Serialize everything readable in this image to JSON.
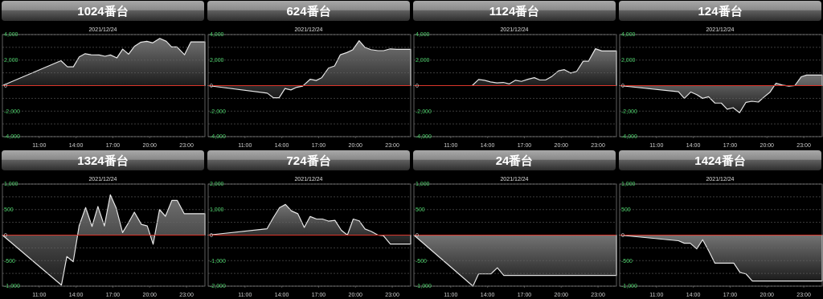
{
  "chart_data": [
    {
      "type": "area",
      "title": "1024番台",
      "subtitle": "2021/12/24",
      "color": "#e6e6e6",
      "xlim": [
        8,
        24.5
      ],
      "xticks": [
        {
          "value": 11,
          "label": "11:00"
        },
        {
          "value": 14,
          "label": "14:00"
        },
        {
          "value": 17,
          "label": "17:00"
        },
        {
          "value": 20,
          "label": "20:00"
        },
        {
          "value": 23,
          "label": "23:00"
        }
      ],
      "ylim": [
        -4000,
        4000
      ],
      "yticks": [
        {
          "value": 4000,
          "label": "4,000"
        },
        {
          "value": 3000,
          "label": null
        },
        {
          "value": 2000,
          "label": "2,000"
        },
        {
          "value": 1000,
          "label": null
        },
        0,
        {
          "value": -1000,
          "label": null
        },
        {
          "value": -2000,
          "label": "-2,000"
        },
        {
          "value": -3000,
          "label": null
        },
        {
          "value": -4000,
          "label": "-4,000"
        }
      ],
      "grid": "y",
      "ref_lines": [
        {
          "axis": "y",
          "value": 0,
          "color": "#d9352a"
        }
      ],
      "x": [
        8,
        12.77,
        13.3,
        13.78,
        14.26,
        14.74,
        15.22,
        15.88,
        16.36,
        16.8,
        17.32,
        17.8,
        18.28,
        18.77,
        19.25,
        19.77,
        20.25,
        20.82,
        21.35,
        21.78,
        22.22,
        22.84,
        23.36,
        24.5
      ],
      "values": [
        0,
        1950,
        1470,
        1470,
        2250,
        2500,
        2420,
        2400,
        2300,
        2400,
        2170,
        2860,
        2460,
        3090,
        3390,
        3470,
        3350,
        3700,
        3470,
        3030,
        3030,
        2420,
        3430,
        3430
      ]
    },
    {
      "type": "area",
      "title": "624番台",
      "subtitle": "2021/12/24",
      "color": "#e6e6e6",
      "xlim": [
        8,
        24.5
      ],
      "xticks": [
        {
          "value": 11,
          "label": "11:00"
        },
        {
          "value": 14,
          "label": "14:00"
        },
        {
          "value": 17,
          "label": "17:00"
        },
        {
          "value": 20,
          "label": "20:00"
        },
        {
          "value": 23,
          "label": "23:00"
        }
      ],
      "ylim": [
        -4000,
        4000
      ],
      "yticks": [
        {
          "value": 4000,
          "label": "4,000"
        },
        {
          "value": 3000,
          "label": null
        },
        {
          "value": 2000,
          "label": "2,000"
        },
        {
          "value": 1000,
          "label": null
        },
        0,
        {
          "value": -1000,
          "label": null
        },
        {
          "value": -2000,
          "label": "-2,000"
        },
        {
          "value": -3000,
          "label": null
        },
        {
          "value": -4000,
          "label": "-4,000"
        }
      ],
      "grid": "y",
      "ref_lines": [
        {
          "axis": "y",
          "value": 0,
          "color": "#d9352a"
        }
      ],
      "x": [
        8,
        12.82,
        13.3,
        13.78,
        14.26,
        14.74,
        15.22,
        15.7,
        16.32,
        16.8,
        17.24,
        17.8,
        18.3,
        18.77,
        19.3,
        19.77,
        20.3,
        20.78,
        21.26,
        21.83,
        22.3,
        22.83,
        23.36,
        24.5
      ],
      "values": [
        0,
        -590,
        -950,
        -950,
        -230,
        -340,
        -130,
        -40,
        500,
        400,
        610,
        1370,
        1540,
        2420,
        2590,
        2800,
        3520,
        2990,
        2820,
        2740,
        2740,
        2880,
        2840,
        2840
      ]
    },
    {
      "type": "area",
      "title": "1124番台",
      "subtitle": "2021/12/24",
      "color": "#e6e6e6",
      "xlim": [
        8,
        24.5
      ],
      "xticks": [
        {
          "value": 11,
          "label": "11:00"
        },
        {
          "value": 14,
          "label": "14:00"
        },
        {
          "value": 17,
          "label": "17:00"
        },
        {
          "value": 20,
          "label": "20:00"
        },
        {
          "value": 23,
          "label": "23:00"
        }
      ],
      "ylim": [
        -4000,
        4000
      ],
      "yticks": [
        {
          "value": 4000,
          "label": "4,000"
        },
        {
          "value": 3000,
          "label": null
        },
        {
          "value": 2000,
          "label": "2,000"
        },
        {
          "value": 1000,
          "label": null
        },
        0,
        {
          "value": -1000,
          "label": null
        },
        {
          "value": -2000,
          "label": "-2,000"
        },
        {
          "value": -3000,
          "label": null
        },
        {
          "value": -4000,
          "label": "-4,000"
        }
      ],
      "grid": "y",
      "ref_lines": [
        {
          "axis": "y",
          "value": 0,
          "color": "#d9352a"
        }
      ],
      "x": [
        8,
        12.75,
        13.27,
        13.75,
        14.23,
        14.76,
        15.28,
        15.76,
        16.28,
        16.76,
        17.29,
        17.81,
        18.25,
        18.73,
        19.25,
        19.78,
        20.26,
        20.78,
        21.26,
        21.79,
        22.22,
        22.79,
        23.31,
        24.5
      ],
      "values": [
        0,
        0,
        480,
        420,
        290,
        210,
        250,
        130,
        420,
        330,
        500,
        620,
        440,
        440,
        730,
        1160,
        1250,
        980,
        1120,
        1910,
        1910,
        2890,
        2720,
        2720
      ]
    },
    {
      "type": "area",
      "title": "124番台",
      "subtitle": "2021/12/24",
      "color": "#e6e6e6",
      "xlim": [
        8,
        24.5
      ],
      "xticks": [
        {
          "value": 11,
          "label": "11:00"
        },
        {
          "value": 14,
          "label": "14:00"
        },
        {
          "value": 17,
          "label": "17:00"
        },
        {
          "value": 20,
          "label": "20:00"
        },
        {
          "value": 23,
          "label": "23:00"
        }
      ],
      "ylim": [
        -4000,
        4000
      ],
      "yticks": [
        {
          "value": 4000,
          "label": "4,000"
        },
        {
          "value": 3000,
          "label": null
        },
        {
          "value": 2000,
          "label": "2,000"
        },
        {
          "value": 1000,
          "label": null
        },
        0,
        {
          "value": -1000,
          "label": null
        },
        {
          "value": -2000,
          "label": "-2,000"
        },
        {
          "value": -3000,
          "label": null
        },
        {
          "value": -4000,
          "label": "-4,000"
        }
      ],
      "grid": "y",
      "ref_lines": [
        {
          "axis": "y",
          "value": 0,
          "color": "#d9352a"
        }
      ],
      "x": [
        8,
        12.79,
        13.27,
        13.8,
        14.28,
        14.76,
        15.24,
        15.76,
        16.28,
        16.76,
        17.24,
        17.77,
        18.29,
        18.77,
        19.3,
        19.73,
        20.26,
        20.74,
        21.26,
        21.79,
        22.27,
        22.79,
        23.23,
        24.5
      ],
      "values": [
        0,
        -480,
        -1000,
        -500,
        -710,
        -1000,
        -870,
        -1370,
        -1370,
        -1850,
        -1730,
        -2120,
        -1310,
        -1230,
        -1290,
        -920,
        -500,
        190,
        40,
        -40,
        0,
        690,
        830,
        830
      ]
    },
    {
      "type": "area",
      "title": "1324番台",
      "subtitle": "2021/12/24",
      "color": "#e6e6e6",
      "xlim": [
        8,
        24.5
      ],
      "xticks": [
        {
          "value": 11,
          "label": "11:00"
        },
        {
          "value": 14,
          "label": "14:00"
        },
        {
          "value": 17,
          "label": "17:00"
        },
        {
          "value": 20,
          "label": "20:00"
        },
        {
          "value": 23,
          "label": "23:00"
        }
      ],
      "ylim": [
        -1000,
        1000
      ],
      "yticks": [
        {
          "value": 1000,
          "label": "1,000"
        },
        {
          "value": 750,
          "label": null
        },
        500,
        {
          "value": 250,
          "label": null
        },
        0,
        {
          "value": -250,
          "label": null
        },
        -500,
        {
          "value": -750,
          "label": null
        },
        {
          "value": -1000,
          "label": "-1,000"
        }
      ],
      "grid": "y",
      "ref_lines": [
        {
          "axis": "y",
          "value": 0,
          "color": "#d9352a"
        }
      ],
      "x": [
        8,
        12.81,
        13.25,
        13.77,
        14.25,
        14.78,
        15.3,
        15.78,
        16.31,
        16.79,
        17.27,
        17.79,
        18.27,
        18.75,
        19.32,
        19.8,
        20.28,
        20.8,
        21.28,
        21.81,
        22.24,
        22.81,
        23.34,
        24.5
      ],
      "values": [
        0,
        -980,
        -420,
        -520,
        180,
        540,
        170,
        560,
        180,
        790,
        530,
        50,
        240,
        450,
        210,
        180,
        -180,
        500,
        370,
        680,
        680,
        420,
        420,
        420
      ]
    },
    {
      "type": "area",
      "title": "724番台",
      "subtitle": "2021/12/24",
      "color": "#e6e6e6",
      "xlim": [
        8,
        24.5
      ],
      "xticks": [
        {
          "value": 11,
          "label": "11:00"
        },
        {
          "value": 14,
          "label": "14:00"
        },
        {
          "value": 17,
          "label": "17:00"
        },
        {
          "value": 20,
          "label": "20:00"
        },
        {
          "value": 23,
          "label": "23:00"
        }
      ],
      "ylim": [
        -2000,
        2000
      ],
      "yticks": [
        {
          "value": 2000,
          "label": "2,000"
        },
        {
          "value": 1500,
          "label": null
        },
        {
          "value": 1000,
          "label": "1,000"
        },
        {
          "value": 500,
          "label": null
        },
        0,
        {
          "value": -500,
          "label": null
        },
        {
          "value": -1000,
          "label": "-1,000"
        },
        {
          "value": -1500,
          "label": null
        },
        {
          "value": -2000,
          "label": "-2,000"
        }
      ],
      "grid": "y",
      "ref_lines": [
        {
          "axis": "y",
          "value": 0,
          "color": "#d9352a"
        }
      ],
      "x": [
        8,
        12.8,
        13.29,
        13.82,
        14.3,
        14.78,
        15.3,
        15.83,
        16.31,
        16.83,
        17.31,
        17.8,
        18.33,
        18.85,
        19.34,
        19.82,
        20.3,
        20.78,
        21.3,
        21.83,
        22.27,
        22.84,
        23.37,
        24.5
      ],
      "values": [
        0,
        250,
        670,
        1080,
        1200,
        950,
        840,
        300,
        730,
        630,
        630,
        550,
        580,
        190,
        0,
        630,
        560,
        240,
        140,
        0,
        -20,
        -350,
        -350,
        -350
      ]
    },
    {
      "type": "area",
      "title": "24番台",
      "subtitle": "2021/12/24",
      "color": "#e6e6e6",
      "xlim": [
        8,
        24.5
      ],
      "xticks": [
        {
          "value": 11,
          "label": "11:00"
        },
        {
          "value": 14,
          "label": "14:00"
        },
        {
          "value": 17,
          "label": "17:00"
        },
        {
          "value": 20,
          "label": "20:00"
        },
        {
          "value": 23,
          "label": "23:00"
        }
      ],
      "ylim": [
        -1000,
        1000
      ],
      "yticks": [
        {
          "value": 1000,
          "label": "1,000"
        },
        {
          "value": 750,
          "label": null
        },
        500,
        {
          "value": 250,
          "label": null
        },
        0,
        {
          "value": -250,
          "label": null
        },
        -500,
        {
          "value": -750,
          "label": null
        },
        {
          "value": -1000,
          "label": "-1,000"
        }
      ],
      "grid": "y",
      "ref_lines": [
        {
          "axis": "y",
          "value": 0,
          "color": "#d9352a"
        }
      ],
      "x": [
        8,
        12.81,
        13.27,
        14.28,
        14.8,
        15.32,
        24.5
      ],
      "values": [
        0,
        -1000,
        -760,
        -760,
        -640,
        -790,
        -790
      ]
    },
    {
      "type": "area",
      "title": "1424番台",
      "subtitle": "2021/12/24",
      "color": "#e6e6e6",
      "xlim": [
        8,
        24.5
      ],
      "xticks": [
        {
          "value": 11,
          "label": "11:00"
        },
        {
          "value": 14,
          "label": "14:00"
        },
        {
          "value": 17,
          "label": "17:00"
        },
        {
          "value": 20,
          "label": "20:00"
        },
        {
          "value": 23,
          "label": "23:00"
        }
      ],
      "ylim": [
        -1000,
        1000
      ],
      "yticks": [
        {
          "value": 1000,
          "label": "1,000"
        },
        {
          "value": 750,
          "label": null
        },
        500,
        {
          "value": 250,
          "label": null
        },
        0,
        {
          "value": -250,
          "label": null
        },
        -500,
        {
          "value": -750,
          "label": null
        },
        {
          "value": -1000,
          "label": "-1,000"
        }
      ],
      "grid": "y",
      "ref_lines": [
        {
          "axis": "y",
          "value": 0,
          "color": "#d9352a"
        }
      ],
      "x": [
        8,
        12.79,
        13.27,
        13.75,
        14.28,
        14.76,
        15.28,
        15.76,
        17.3,
        17.8,
        18.29,
        18.81,
        24.5
      ],
      "values": [
        0,
        -110,
        -160,
        -160,
        -270,
        -90,
        -320,
        -550,
        -550,
        -730,
        -760,
        -900,
        -900
      ]
    }
  ]
}
